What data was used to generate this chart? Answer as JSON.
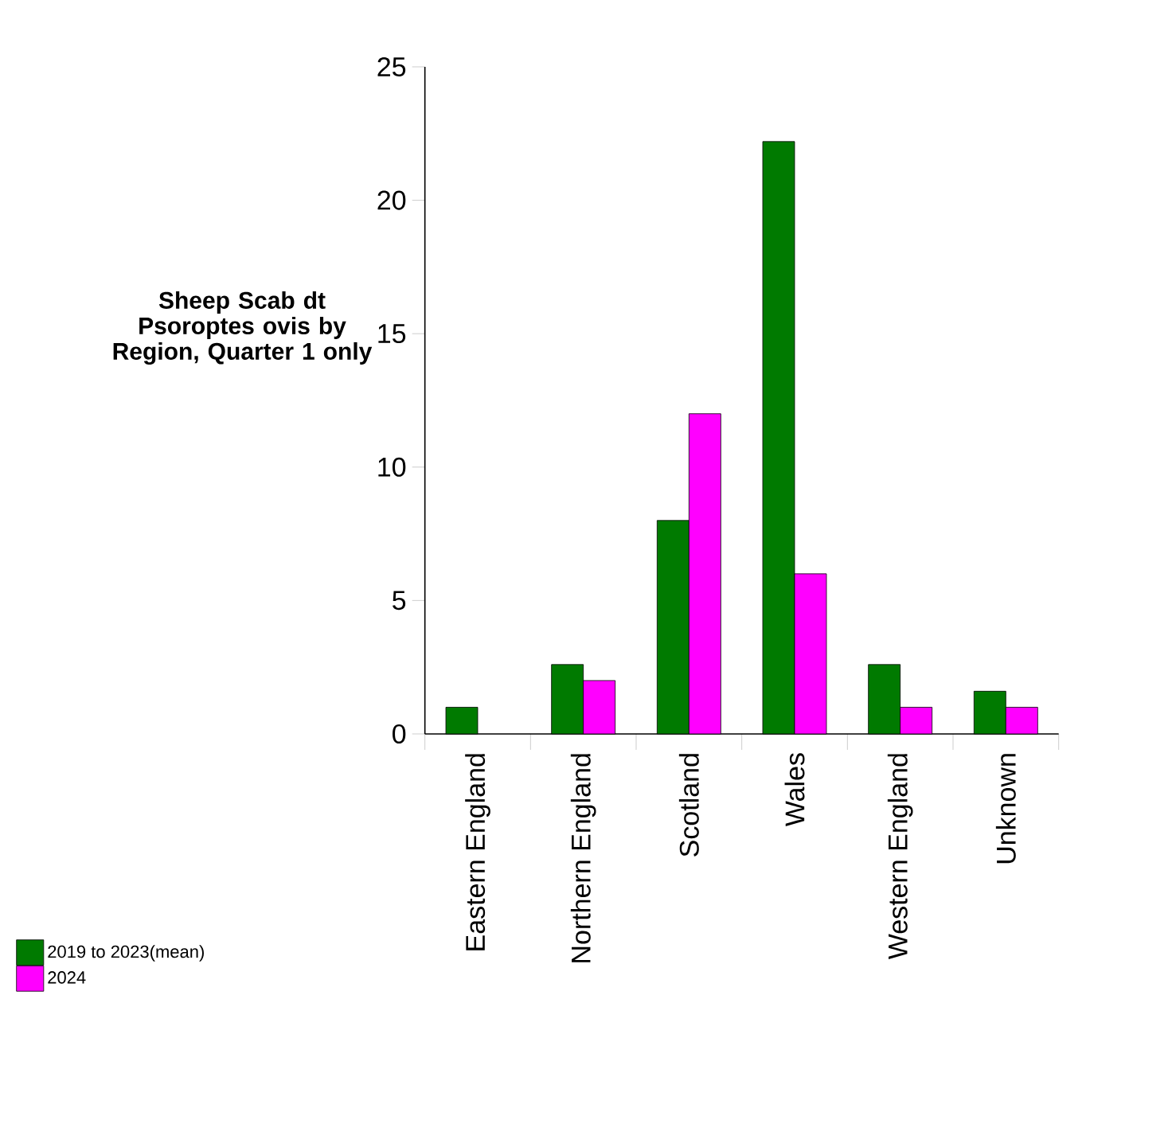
{
  "chart_data": {
    "type": "bar",
    "title": "Sheep Scab dt Psoroptes ovis by Region,  Quarter 1 only",
    "categories": [
      "Eastern England",
      "Northern England",
      "Scotland",
      "Wales",
      "Western England",
      "Unknown"
    ],
    "series": [
      {
        "name": "2019 to 2023(mean)",
        "color": "#007a00",
        "values": [
          1,
          2.6,
          8,
          22.2,
          2.6,
          1.6
        ]
      },
      {
        "name": "2024",
        "color": "#ff00ff",
        "values": [
          null,
          2,
          12,
          6,
          1,
          1
        ]
      }
    ],
    "ylim": [
      0,
      25
    ],
    "yticks": [
      0,
      5,
      10,
      15,
      20,
      25
    ],
    "legend": "left"
  }
}
